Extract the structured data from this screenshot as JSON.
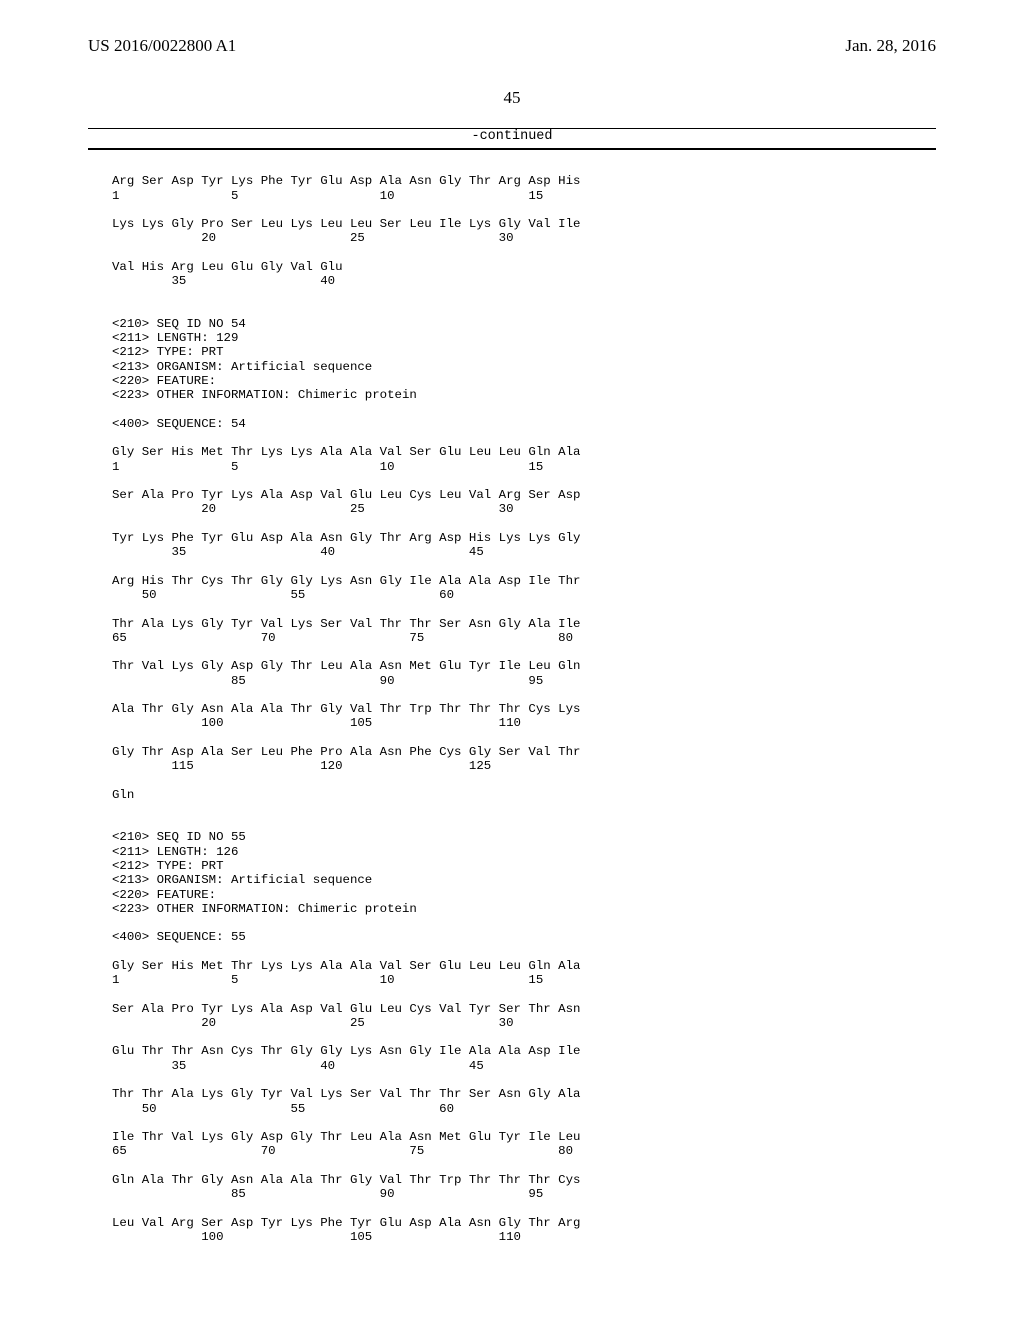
{
  "header": {
    "left": "US 2016/0022800 A1",
    "right": "Jan. 28, 2016",
    "page_number": "45",
    "continued": "-continued"
  },
  "seq53": {
    "row1": "Arg Ser Asp Tyr Lys Phe Tyr Glu Asp Ala Asn Gly Thr Arg Asp His",
    "row1n": "1               5                   10                  15",
    "row2": "Lys Lys Gly Pro Ser Leu Lys Leu Leu Ser Leu Ile Lys Gly Val Ile",
    "row2n": "            20                  25                  30",
    "row3": "Val His Arg Leu Glu Gly Val Glu",
    "row3n": "        35                  40"
  },
  "hdr54": {
    "l1": "<210> SEQ ID NO 54",
    "l2": "<211> LENGTH: 129",
    "l3": "<212> TYPE: PRT",
    "l4": "<213> ORGANISM: Artificial sequence",
    "l5": "<220> FEATURE:",
    "l6": "<223> OTHER INFORMATION: Chimeric protein",
    "l7": "<400> SEQUENCE: 54"
  },
  "seq54": {
    "r1": "Gly Ser His Met Thr Lys Lys Ala Ala Val Ser Glu Leu Leu Gln Ala",
    "r1n": "1               5                   10                  15",
    "r2": "Ser Ala Pro Tyr Lys Ala Asp Val Glu Leu Cys Leu Val Arg Ser Asp",
    "r2n": "            20                  25                  30",
    "r3": "Tyr Lys Phe Tyr Glu Asp Ala Asn Gly Thr Arg Asp His Lys Lys Gly",
    "r3n": "        35                  40                  45",
    "r4": "Arg His Thr Cys Thr Gly Gly Lys Asn Gly Ile Ala Ala Asp Ile Thr",
    "r4n": "    50                  55                  60",
    "r5": "Thr Ala Lys Gly Tyr Val Lys Ser Val Thr Thr Ser Asn Gly Ala Ile",
    "r5n": "65                  70                  75                  80",
    "r6": "Thr Val Lys Gly Asp Gly Thr Leu Ala Asn Met Glu Tyr Ile Leu Gln",
    "r6n": "                85                  90                  95",
    "r7": "Ala Thr Gly Asn Ala Ala Thr Gly Val Thr Trp Thr Thr Thr Cys Lys",
    "r7n": "            100                 105                 110",
    "r8": "Gly Thr Asp Ala Ser Leu Phe Pro Ala Asn Phe Cys Gly Ser Val Thr",
    "r8n": "        115                 120                 125",
    "r9": "Gln"
  },
  "hdr55": {
    "l1": "<210> SEQ ID NO 55",
    "l2": "<211> LENGTH: 126",
    "l3": "<212> TYPE: PRT",
    "l4": "<213> ORGANISM: Artificial sequence",
    "l5": "<220> FEATURE:",
    "l6": "<223> OTHER INFORMATION: Chimeric protein",
    "l7": "<400> SEQUENCE: 55"
  },
  "seq55": {
    "r1": "Gly Ser His Met Thr Lys Lys Ala Ala Val Ser Glu Leu Leu Gln Ala",
    "r1n": "1               5                   10                  15",
    "r2": "Ser Ala Pro Tyr Lys Ala Asp Val Glu Leu Cys Val Tyr Ser Thr Asn",
    "r2n": "            20                  25                  30",
    "r3": "Glu Thr Thr Asn Cys Thr Gly Gly Lys Asn Gly Ile Ala Ala Asp Ile",
    "r3n": "        35                  40                  45",
    "r4": "Thr Thr Ala Lys Gly Tyr Val Lys Ser Val Thr Thr Ser Asn Gly Ala",
    "r4n": "    50                  55                  60",
    "r5": "Ile Thr Val Lys Gly Asp Gly Thr Leu Ala Asn Met Glu Tyr Ile Leu",
    "r5n": "65                  70                  75                  80",
    "r6": "Gln Ala Thr Gly Asn Ala Ala Thr Gly Val Thr Trp Thr Thr Thr Cys",
    "r6n": "                85                  90                  95",
    "r7": "Leu Val Arg Ser Asp Tyr Lys Phe Tyr Glu Asp Ala Asn Gly Thr Arg",
    "r7n": "            100                 105                 110"
  }
}
